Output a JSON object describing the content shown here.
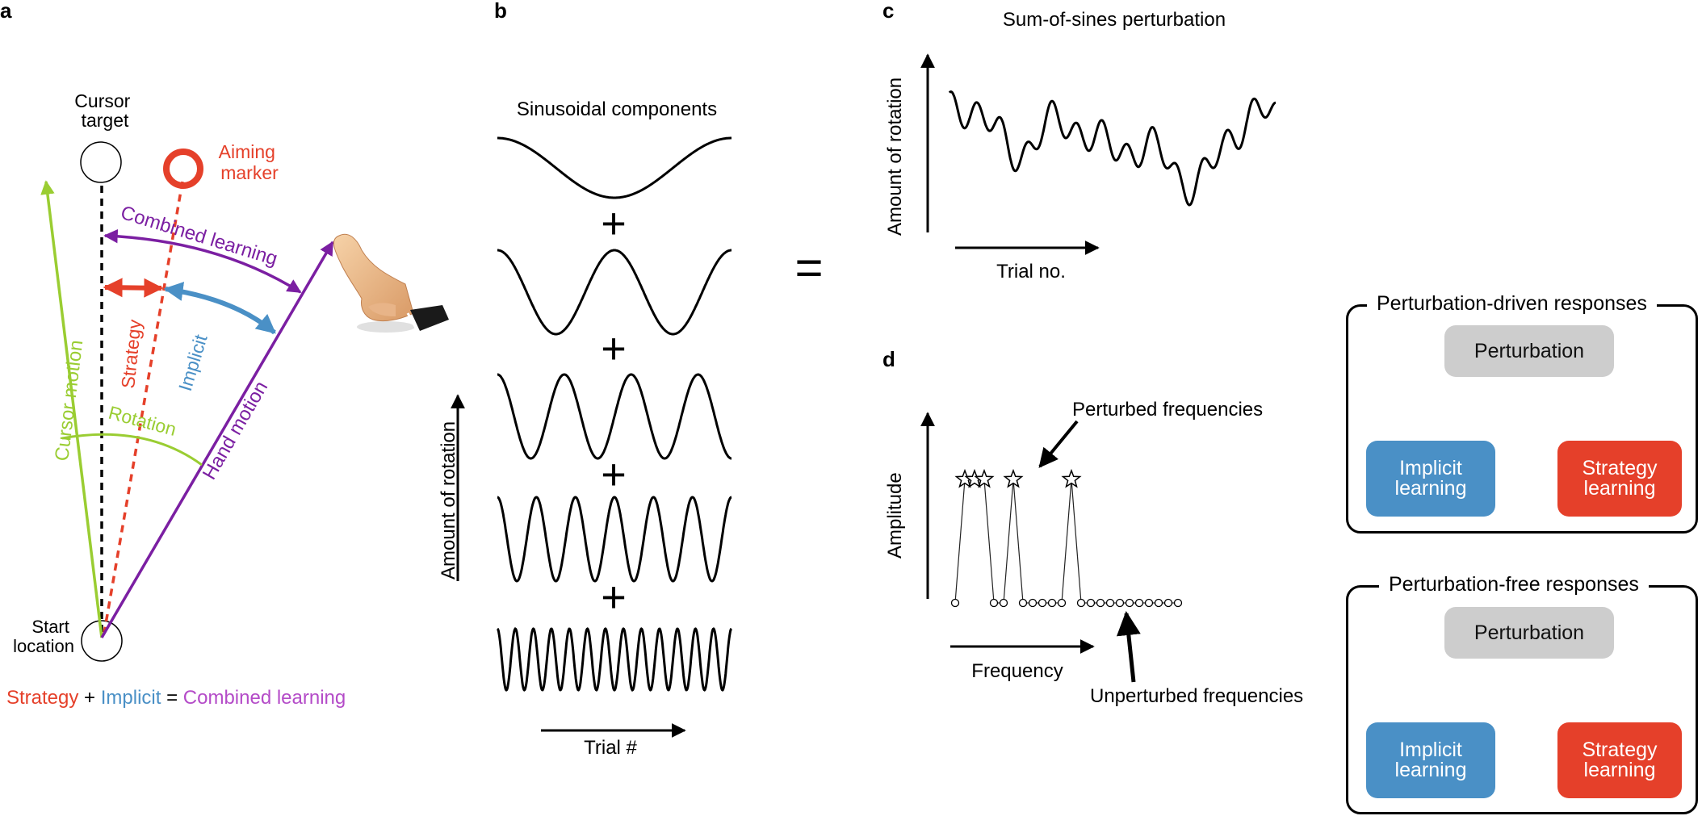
{
  "panel_letters": {
    "a": "a",
    "b": "b",
    "c": "c",
    "d": "d"
  },
  "panel_a": {
    "cursor_target": [
      "Cursor",
      "target"
    ],
    "aiming_marker": [
      "Aiming",
      "marker"
    ],
    "combined_learning": "Combined learning",
    "strategy": "Strategy",
    "implicit": "Implicit",
    "cursor_motion": "Cursor motion",
    "rotation": "Rotation",
    "hand_motion": "Hand motion",
    "start_location": [
      "Start",
      "location"
    ],
    "equation": {
      "strategy": "Strategy",
      "plus": " + ",
      "implicit": "Implicit",
      "equals": " = ",
      "combined": "Combined learning"
    },
    "colors": {
      "strategy": "#e5402a",
      "implicit": "#4a90c6",
      "combined": "#7b1fa2",
      "cursor": "#9acd32",
      "combined_text": "#b44bc8"
    }
  },
  "panel_b": {
    "title": "Sinusoidal components",
    "ylabel": "Amount of rotation",
    "xlabel": "Trial #",
    "plus": "+",
    "equals": "=",
    "component_cycles": [
      1,
      2,
      3.5,
      6,
      13
    ]
  },
  "panel_c": {
    "title": "Sum-of-sines perturbation",
    "ylabel": "Amount of rotation",
    "xlabel": "Trial no."
  },
  "panel_d": {
    "ylabel": "Amplitude",
    "xlabel": "Frequency",
    "perturbed_label": "Perturbed frequencies",
    "unperturbed_label": "Unperturbed frequencies"
  },
  "diagram_driven": {
    "title": "Perturbation-driven responses",
    "perturbation": "Perturbation",
    "implicit": "Implicit\nlearning",
    "strategy": "Strategy\nlearning"
  },
  "diagram_free": {
    "title": "Perturbation-free responses",
    "perturbation": "Perturbation",
    "implicit": "Implicit\nlearning",
    "strategy": "Strategy\nlearning",
    "blocked_color": "#f0a020"
  }
}
